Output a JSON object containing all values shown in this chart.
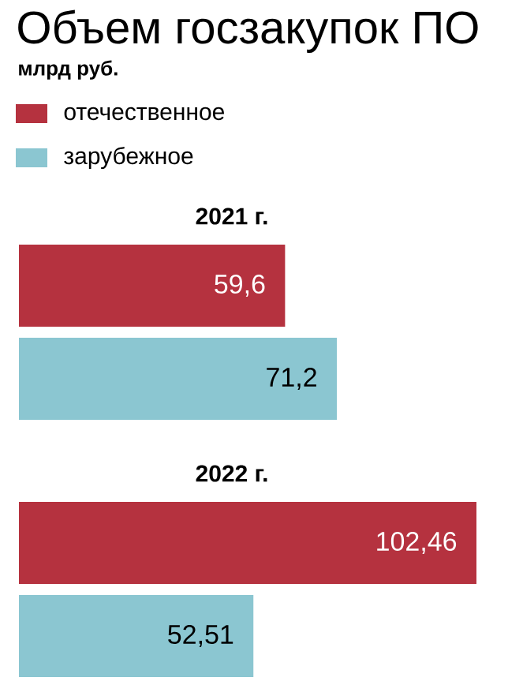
{
  "chart_data": {
    "type": "bar",
    "orientation": "horizontal",
    "title": "Объем госзакупок ПО",
    "subtitle": "млрд руб.",
    "categories": [
      "2021 г.",
      "2022 г."
    ],
    "series": [
      {
        "name": "отечественное",
        "color": "#b5323f",
        "values": [
          59.6,
          102.46
        ],
        "value_labels": [
          "59,6",
          "102,46"
        ]
      },
      {
        "name": "зарубежное",
        "color": "#8bc6d1",
        "values": [
          71.2,
          52.51
        ],
        "value_labels": [
          "71,2",
          "52,51"
        ]
      }
    ],
    "legend": "top left"
  }
}
